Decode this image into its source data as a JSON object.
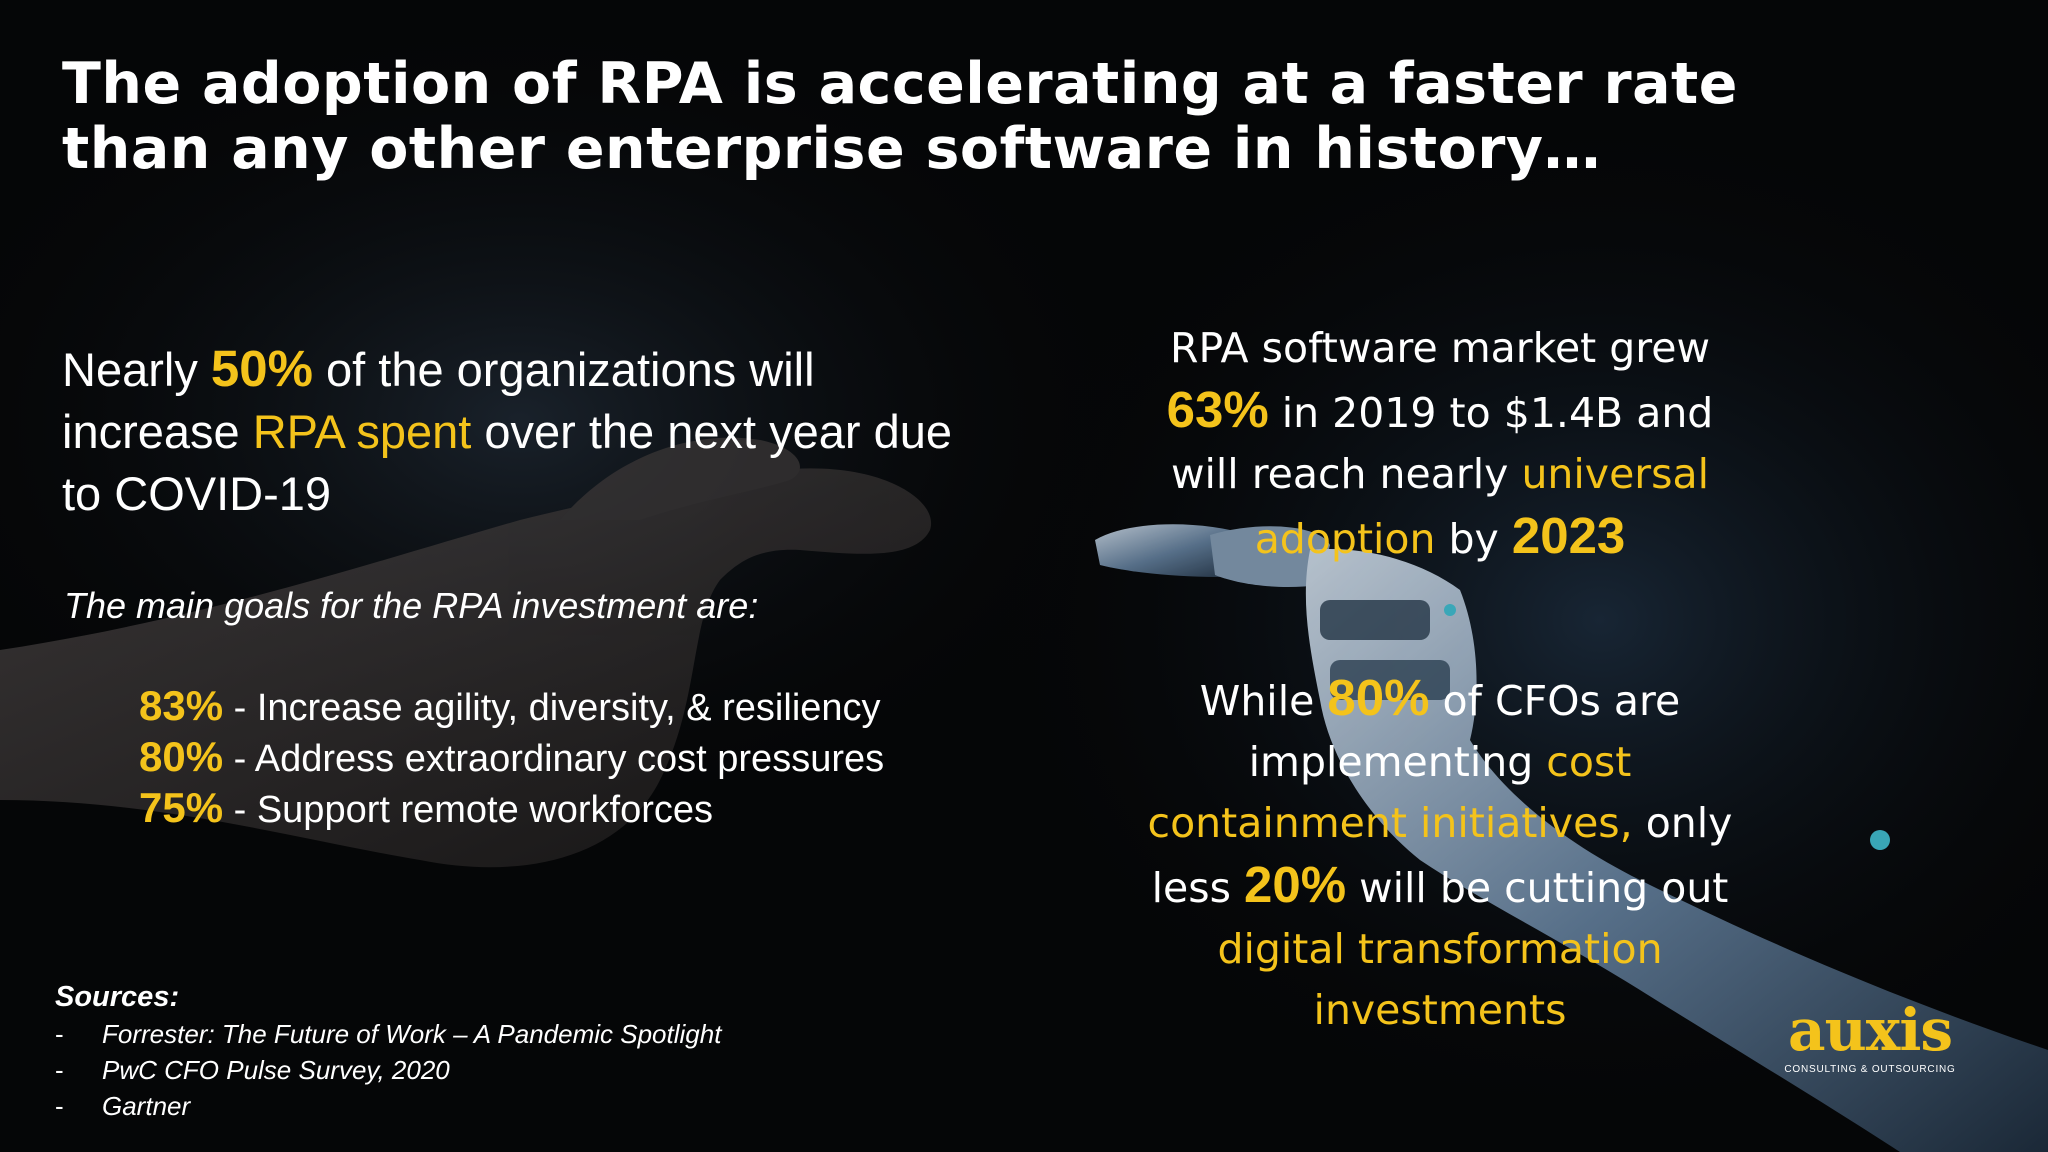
{
  "slide": {
    "title_line1": "The adoption of RPA is accelerating at a faster rate",
    "title_line2": "than any other enterprise software in history…",
    "left": {
      "intro_pre": "Nearly ",
      "intro_pct": "50%",
      "intro_mid": " of the organizations will increase ",
      "intro_hl": "RPA spent",
      "intro_post": " over the next year due to COVID-19",
      "goals_intro": "The main goals for the RPA investment are:",
      "goals": [
        {
          "pct": "83%",
          "text": " - Increase agility, diversity, & resiliency"
        },
        {
          "pct": "80%",
          "text": " - Address extraordinary cost pressures"
        },
        {
          "pct": "75%",
          "text": " - Support remote workforces"
        }
      ]
    },
    "right": {
      "block1": {
        "l1": "RPA software market grew",
        "pct": "63%",
        "l2_post": " in 2019 to $1.4B and",
        "l3_pre": "will reach nearly ",
        "l3_hl": "universal",
        "l4_hl": "adoption",
        "l4_mid": " by ",
        "year": "2023"
      },
      "block2": {
        "l1_pre": "While ",
        "pct1": "80%",
        "l1_post": " of CFOs are",
        "l2_pre": "implementing ",
        "l2_hl": "cost",
        "l3_hl": "containment initiatives,",
        "l3_post": " only",
        "l4_pre": "less ",
        "pct2": "20%",
        "l4_post": " will be cutting out",
        "l5_hl": "digital transformation",
        "l6_hl": "investments"
      }
    },
    "sources": {
      "title": "Sources:",
      "dash": "-",
      "items": [
        "Forrester: The Future of Work – A Pandemic Spotlight",
        "PwC CFO Pulse Survey, 2020",
        "Gartner"
      ]
    },
    "logo": {
      "word": "auxis",
      "tagline": "CONSULTING & OUTSOURCING"
    },
    "colors": {
      "accent": "#f4c31b",
      "background": "#050607",
      "text": "#ffffff"
    }
  }
}
